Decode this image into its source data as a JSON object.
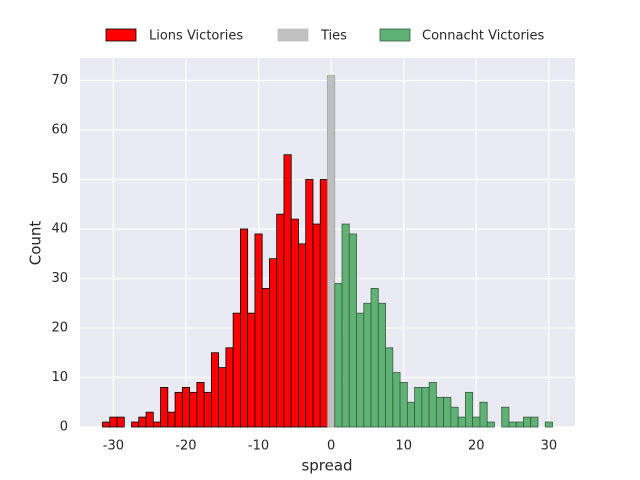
{
  "chart_data": {
    "type": "histogram",
    "xlabel": "spread",
    "ylabel": "Count",
    "xlim": [
      -34.6,
      33.6
    ],
    "ylim": [
      0,
      74.55
    ],
    "xticks": [
      -30,
      -20,
      -10,
      0,
      10,
      20,
      30
    ],
    "yticks": [
      0,
      10,
      20,
      30,
      40,
      50,
      60,
      70
    ],
    "grid": true,
    "legend": "top",
    "series": [
      {
        "name": "Lions Victories",
        "color": "#ff0000",
        "edgecolor": "#000000",
        "bins": [
          -31.5,
          -30.5,
          -29.5,
          -28.5,
          -27.5,
          -26.5,
          -25.5,
          -24.5,
          -23.5,
          -22.5,
          -21.5,
          -20.5,
          -19.5,
          -18.5,
          -17.5,
          -16.5,
          -15.5,
          -14.5,
          -13.5,
          -12.5,
          -11.5,
          -10.5,
          -9.5,
          -8.5,
          -7.5,
          -6.5,
          -5.5,
          -4.5,
          -3.5,
          -2.5,
          -1.5,
          -0.5
        ],
        "values": [
          1,
          2,
          2,
          0,
          1,
          2,
          3,
          1,
          8,
          3,
          7,
          8,
          7,
          9,
          7,
          15,
          12,
          16,
          23,
          40,
          23,
          39,
          28,
          34,
          43,
          55,
          42,
          37,
          50,
          41,
          50
        ]
      },
      {
        "name": "Ties",
        "color": "#c0c0c0",
        "edgecolor": "#a0a0a0",
        "bins": [
          -0.5,
          0.5
        ],
        "values": [
          71
        ]
      },
      {
        "name": "Connacht Victories",
        "color": "#5eb273",
        "edgecolor": "#3d5a44",
        "bins": [
          0.5,
          1.5,
          2.5,
          3.5,
          4.5,
          5.5,
          6.5,
          7.5,
          8.5,
          9.5,
          10.5,
          11.5,
          12.5,
          13.5,
          14.5,
          15.5,
          16.5,
          17.5,
          18.5,
          19.5,
          20.5,
          21.5,
          22.5,
          23.5,
          24.5,
          25.5,
          26.5,
          27.5,
          28.5,
          29.5,
          30.5
        ],
        "values": [
          29,
          41,
          39,
          23,
          25,
          28,
          25,
          16,
          11,
          9,
          5,
          8,
          8,
          9,
          6,
          6,
          4,
          2,
          7,
          2,
          5,
          1,
          0,
          4,
          1,
          1,
          2,
          2,
          0,
          1
        ]
      }
    ]
  }
}
